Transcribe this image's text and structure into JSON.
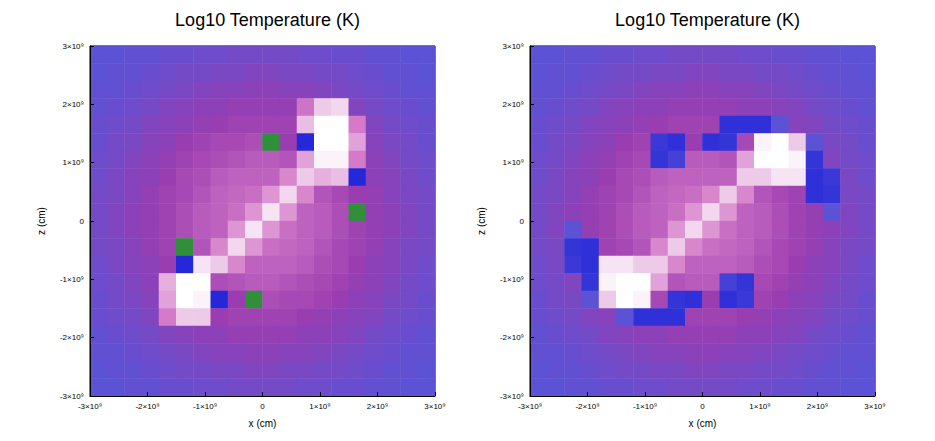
{
  "chart_data": [
    {
      "type": "heatmap",
      "title": "Log10 Temperature (K)",
      "x_label": "x (cm)",
      "y_label": "z (cm)",
      "xlim": [
        -3000000000.0,
        3000000000.0
      ],
      "ylim": [
        -3000000000.0,
        3000000000.0
      ],
      "xticks": [
        {
          "value": -3000000000.0,
          "label": "-3×10⁹"
        },
        {
          "value": -2000000000.0,
          "label": "-2×10⁹"
        },
        {
          "value": -1000000000.0,
          "label": "-1×10⁹"
        },
        0,
        {
          "value": 1000000000.0,
          "label": "1×10⁹"
        },
        {
          "value": 2000000000.0,
          "label": "2×10⁹"
        },
        {
          "value": 3000000000.0,
          "label": "3×10⁹"
        }
      ],
      "yticks": [
        {
          "value": -3000000000.0,
          "label": "-3×10⁹"
        },
        {
          "value": -2000000000.0,
          "label": "-2×10⁹"
        },
        {
          "value": -1000000000.0,
          "label": "-1×10⁹"
        },
        0,
        {
          "value": 1000000000.0,
          "label": "1×10⁹"
        },
        {
          "value": 2000000000.0,
          "label": "2×10⁹"
        },
        {
          "value": 3000000000.0,
          "label": "3×10⁹"
        }
      ],
      "grid": false,
      "color_range": [
        4,
        9
      ],
      "x": [
        -2850000000.0,
        -2550000000.0,
        -2250000000.0,
        -1950000000.0,
        -1650000000.0,
        -1350000000.0,
        -1050000000.0,
        -750000000.0,
        -450000000.0,
        -150000000.0,
        150000000.0,
        450000000.0,
        750000000.0,
        1050000000.0,
        1350000000.0,
        1650000000.0,
        1950000000.0,
        2250000000.0,
        2550000000.0,
        2850000000.0
      ],
      "y": [
        2850000000.0,
        2550000000.0,
        2250000000.0,
        1950000000.0,
        1650000000.0,
        1350000000.0,
        1050000000.0,
        750000000.0,
        450000000.0,
        150000000.0,
        -150000000.0,
        -450000000.0,
        -750000000.0,
        -1050000000.0,
        -1350000000.0,
        -1650000000.0,
        -1950000000.0,
        -2250000000.0,
        -2550000000.0,
        -2850000000.0
      ],
      "cells": [
        [
          6.0,
          6.0,
          6.1,
          6.1,
          6.2,
          6.2,
          6.3,
          6.3,
          6.4,
          6.4,
          6.4,
          6.4,
          6.3,
          6.3,
          6.2,
          6.2,
          6.1,
          6.1,
          6.0,
          6.0
        ],
        [
          6.0,
          6.1,
          6.1,
          6.2,
          6.3,
          6.4,
          6.4,
          6.5,
          6.5,
          6.6,
          6.6,
          6.5,
          6.5,
          6.4,
          6.4,
          6.3,
          6.2,
          6.1,
          6.1,
          6.0
        ],
        [
          6.1,
          6.1,
          6.2,
          6.3,
          6.4,
          6.5,
          6.6,
          6.7,
          6.7,
          6.8,
          6.8,
          6.7,
          6.7,
          6.6,
          6.5,
          6.4,
          6.3,
          6.2,
          6.1,
          6.1
        ],
        [
          6.1,
          6.2,
          6.3,
          6.4,
          6.6,
          6.7,
          6.8,
          6.8,
          6.9,
          6.9,
          6.9,
          6.9,
          7.9,
          8.6,
          8.7,
          6.6,
          6.4,
          6.3,
          6.2,
          6.1
        ],
        [
          6.2,
          6.3,
          6.4,
          6.6,
          6.7,
          6.8,
          6.9,
          7.0,
          7.1,
          7.1,
          7.1,
          7.1,
          8.5,
          9.0,
          9.0,
          8.0,
          6.6,
          6.4,
          6.3,
          6.2
        ],
        [
          6.2,
          6.4,
          6.5,
          6.7,
          6.8,
          7.0,
          7.1,
          7.2,
          7.2,
          7.3,
          4.0,
          7.0,
          5.0,
          9.0,
          9.0,
          8.3,
          6.7,
          6.5,
          6.4,
          6.2
        ],
        [
          6.3,
          6.4,
          6.6,
          6.8,
          6.9,
          7.1,
          7.2,
          7.3,
          7.4,
          7.5,
          7.5,
          7.4,
          8.3,
          8.9,
          8.9,
          8.0,
          6.8,
          6.6,
          6.4,
          6.3
        ],
        [
          6.3,
          6.5,
          6.7,
          6.8,
          7.0,
          7.2,
          7.3,
          7.5,
          7.6,
          7.6,
          7.6,
          8.1,
          8.6,
          8.4,
          8.5,
          5.0,
          6.8,
          6.7,
          6.5,
          6.3
        ],
        [
          6.4,
          6.5,
          6.7,
          6.9,
          7.1,
          7.2,
          7.4,
          7.6,
          7.7,
          7.8,
          8.2,
          8.7,
          8.1,
          7.4,
          7.2,
          7.0,
          6.9,
          6.7,
          6.5,
          6.4
        ],
        [
          6.4,
          6.6,
          6.8,
          6.9,
          7.1,
          7.3,
          7.5,
          7.6,
          7.8,
          8.2,
          8.8,
          8.2,
          7.6,
          7.5,
          7.3,
          4.0,
          6.9,
          6.8,
          6.6,
          6.4
        ],
        [
          6.4,
          6.6,
          6.8,
          6.9,
          7.1,
          7.3,
          7.5,
          7.6,
          8.2,
          8.8,
          8.2,
          7.8,
          7.6,
          7.5,
          7.3,
          7.1,
          6.9,
          6.8,
          6.6,
          6.4
        ],
        [
          6.4,
          6.5,
          6.7,
          6.9,
          7.1,
          4.0,
          7.4,
          8.1,
          8.7,
          8.2,
          7.8,
          7.7,
          7.6,
          7.4,
          7.2,
          7.1,
          6.9,
          6.7,
          6.5,
          6.4
        ],
        [
          6.3,
          6.5,
          6.7,
          6.8,
          7.0,
          5.0,
          8.8,
          8.6,
          8.1,
          7.6,
          7.6,
          7.6,
          7.5,
          7.3,
          7.2,
          7.0,
          6.8,
          6.7,
          6.5,
          6.3
        ],
        [
          6.3,
          6.4,
          6.6,
          6.8,
          8.4,
          9.0,
          9.0,
          7.3,
          7.4,
          7.5,
          7.5,
          7.4,
          7.3,
          7.2,
          7.1,
          6.9,
          6.8,
          6.6,
          6.4,
          6.3
        ],
        [
          6.2,
          6.4,
          6.5,
          6.7,
          8.3,
          9.0,
          8.9,
          5.0,
          7.0,
          4.0,
          7.3,
          7.2,
          7.2,
          7.1,
          7.0,
          6.8,
          6.7,
          6.5,
          6.4,
          6.2
        ],
        [
          6.2,
          6.3,
          6.4,
          6.6,
          8.0,
          8.6,
          8.6,
          7.0,
          7.1,
          7.1,
          7.1,
          7.1,
          7.0,
          6.9,
          6.8,
          6.7,
          6.6,
          6.4,
          6.3,
          6.2
        ],
        [
          6.1,
          6.2,
          6.3,
          6.4,
          6.6,
          6.7,
          6.8,
          6.8,
          6.9,
          6.9,
          6.9,
          6.9,
          6.8,
          6.8,
          6.7,
          6.6,
          6.4,
          6.3,
          6.2,
          6.1
        ],
        [
          6.1,
          6.1,
          6.2,
          6.3,
          6.4,
          6.5,
          6.6,
          6.7,
          6.7,
          6.8,
          6.8,
          6.7,
          6.7,
          6.6,
          6.5,
          6.4,
          6.3,
          6.2,
          6.1,
          6.1
        ],
        [
          6.0,
          6.1,
          6.1,
          6.2,
          6.3,
          6.4,
          6.4,
          6.5,
          6.5,
          6.6,
          6.6,
          6.5,
          6.5,
          6.4,
          6.4,
          6.3,
          6.2,
          6.1,
          6.1,
          6.0
        ],
        [
          6.0,
          6.0,
          6.1,
          6.1,
          6.2,
          6.2,
          6.3,
          6.3,
          6.4,
          6.4,
          6.4,
          6.4,
          6.3,
          6.3,
          6.2,
          6.2,
          6.1,
          6.1,
          6.0,
          6.0
        ]
      ]
    },
    {
      "type": "heatmap",
      "title": "Log10 Temperature (K)",
      "x_label": "x (cm)",
      "y_label": "z (cm)",
      "xlim": [
        -3000000000.0,
        3000000000.0
      ],
      "ylim": [
        -3000000000.0,
        3000000000.0
      ],
      "xticks": [
        {
          "value": -3000000000.0,
          "label": "-3×10⁹"
        },
        {
          "value": -2000000000.0,
          "label": "-2×10⁹"
        },
        {
          "value": -1000000000.0,
          "label": "-1×10⁹"
        },
        0,
        {
          "value": 1000000000.0,
          "label": "1×10⁹"
        },
        {
          "value": 2000000000.0,
          "label": "2×10⁹"
        },
        {
          "value": 3000000000.0,
          "label": "3×10⁹"
        }
      ],
      "yticks": [
        {
          "value": -3000000000.0,
          "label": "-3×10⁹"
        },
        {
          "value": -2000000000.0,
          "label": "-2×10⁹"
        },
        {
          "value": -1000000000.0,
          "label": "-1×10⁹"
        },
        0,
        {
          "value": 1000000000.0,
          "label": "1×10⁹"
        },
        {
          "value": 2000000000.0,
          "label": "2×10⁹"
        },
        {
          "value": 3000000000.0,
          "label": "3×10⁹"
        }
      ],
      "grid": false,
      "color_range": [
        4,
        9
      ],
      "x": [
        -2850000000.0,
        -2550000000.0,
        -2250000000.0,
        -1950000000.0,
        -1650000000.0,
        -1350000000.0,
        -1050000000.0,
        -750000000.0,
        -450000000.0,
        -150000000.0,
        150000000.0,
        450000000.0,
        750000000.0,
        1050000000.0,
        1350000000.0,
        1650000000.0,
        1950000000.0,
        2250000000.0,
        2550000000.0,
        2850000000.0
      ],
      "y": [
        2850000000.0,
        2550000000.0,
        2250000000.0,
        1950000000.0,
        1650000000.0,
        1350000000.0,
        1050000000.0,
        750000000.0,
        450000000.0,
        150000000.0,
        -150000000.0,
        -450000000.0,
        -750000000.0,
        -1050000000.0,
        -1350000000.0,
        -1650000000.0,
        -1950000000.0,
        -2250000000.0,
        -2550000000.0,
        -2850000000.0
      ],
      "cells": [
        [
          6.0,
          6.0,
          6.1,
          6.1,
          6.2,
          6.2,
          6.3,
          6.3,
          6.4,
          6.4,
          6.4,
          6.4,
          6.3,
          6.3,
          6.2,
          6.2,
          6.1,
          6.1,
          6.0,
          6.0
        ],
        [
          6.0,
          6.1,
          6.1,
          6.2,
          6.3,
          6.4,
          6.4,
          6.5,
          6.5,
          6.6,
          6.6,
          6.5,
          6.5,
          6.4,
          6.4,
          6.3,
          6.2,
          6.1,
          6.1,
          6.0
        ],
        [
          6.1,
          6.1,
          6.2,
          6.3,
          6.4,
          6.5,
          6.6,
          6.7,
          6.7,
          6.8,
          6.8,
          6.7,
          6.7,
          6.6,
          6.5,
          6.4,
          6.3,
          6.2,
          6.1,
          6.1
        ],
        [
          6.1,
          6.2,
          6.3,
          6.4,
          6.6,
          6.7,
          6.8,
          6.8,
          6.9,
          6.9,
          6.9,
          6.9,
          6.8,
          6.8,
          6.7,
          6.6,
          6.4,
          6.3,
          6.2,
          6.1
        ],
        [
          6.2,
          6.3,
          6.4,
          6.6,
          6.7,
          6.8,
          6.9,
          7.0,
          7.1,
          7.1,
          7.1,
          5.2,
          5.2,
          5.2,
          6.0,
          6.7,
          6.6,
          6.4,
          6.3,
          6.2
        ],
        [
          6.2,
          6.4,
          6.5,
          6.7,
          6.8,
          7.0,
          7.1,
          5.4,
          5.2,
          7.0,
          5.2,
          5.3,
          7.2,
          8.9,
          9.0,
          8.6,
          6.0,
          6.5,
          6.4,
          6.2
        ],
        [
          6.3,
          6.4,
          6.6,
          6.8,
          6.9,
          7.1,
          7.2,
          5.3,
          5.6,
          7.5,
          7.5,
          7.4,
          8.3,
          9.0,
          9.0,
          8.9,
          5.3,
          6.6,
          6.4,
          6.3
        ],
        [
          6.3,
          6.5,
          6.7,
          6.8,
          7.0,
          7.2,
          7.3,
          7.5,
          7.6,
          7.6,
          7.6,
          7.6,
          8.6,
          8.6,
          8.8,
          8.8,
          5.2,
          5.4,
          6.5,
          6.3
        ],
        [
          6.4,
          6.5,
          6.7,
          6.9,
          7.1,
          7.2,
          7.4,
          7.6,
          7.7,
          7.8,
          8.1,
          8.6,
          8.1,
          7.4,
          7.2,
          7.1,
          5.2,
          5.3,
          6.5,
          6.4
        ],
        [
          6.4,
          6.6,
          6.8,
          6.9,
          7.1,
          7.3,
          7.5,
          7.6,
          7.8,
          8.2,
          8.7,
          8.2,
          7.6,
          7.5,
          7.3,
          7.1,
          6.9,
          6.0,
          6.6,
          6.4
        ],
        [
          6.4,
          6.6,
          6.0,
          6.9,
          7.1,
          7.3,
          7.5,
          7.6,
          8.2,
          8.7,
          8.2,
          7.8,
          7.6,
          7.5,
          7.3,
          7.1,
          6.9,
          6.8,
          6.6,
          6.4
        ],
        [
          6.4,
          6.5,
          5.3,
          5.2,
          7.1,
          7.2,
          7.4,
          8.1,
          8.6,
          8.1,
          7.8,
          7.7,
          7.6,
          7.4,
          7.2,
          7.1,
          6.9,
          6.7,
          6.5,
          6.4
        ],
        [
          6.3,
          6.5,
          5.4,
          5.2,
          8.8,
          8.8,
          8.6,
          8.6,
          8.1,
          7.6,
          7.6,
          7.6,
          7.5,
          7.3,
          7.2,
          7.0,
          6.8,
          6.7,
          6.5,
          6.3
        ],
        [
          6.3,
          6.4,
          6.6,
          5.3,
          8.9,
          9.0,
          9.0,
          8.3,
          7.4,
          7.5,
          7.5,
          5.6,
          5.3,
          7.2,
          7.1,
          6.9,
          6.8,
          6.6,
          6.4,
          6.3
        ],
        [
          6.2,
          6.4,
          6.5,
          6.0,
          8.6,
          9.0,
          8.9,
          7.2,
          5.3,
          5.2,
          7.0,
          5.2,
          5.4,
          7.1,
          7.0,
          6.8,
          6.7,
          6.5,
          6.4,
          6.2
        ],
        [
          6.2,
          6.3,
          6.4,
          6.6,
          6.7,
          6.0,
          5.2,
          5.2,
          5.2,
          7.1,
          7.1,
          7.1,
          7.0,
          6.9,
          6.8,
          6.7,
          6.6,
          6.4,
          6.3,
          6.2
        ],
        [
          6.1,
          6.2,
          6.3,
          6.4,
          6.6,
          6.7,
          6.8,
          6.8,
          6.9,
          6.9,
          6.9,
          6.9,
          6.8,
          6.8,
          6.7,
          6.6,
          6.4,
          6.3,
          6.2,
          6.1
        ],
        [
          6.1,
          6.1,
          6.2,
          6.3,
          6.4,
          6.5,
          6.6,
          6.7,
          6.7,
          6.8,
          6.8,
          6.7,
          6.7,
          6.6,
          6.5,
          6.4,
          6.3,
          6.2,
          6.1,
          6.1
        ],
        [
          6.0,
          6.1,
          6.1,
          6.2,
          6.3,
          6.4,
          6.4,
          6.5,
          6.5,
          6.6,
          6.6,
          6.5,
          6.5,
          6.4,
          6.4,
          6.3,
          6.2,
          6.1,
          6.1,
          6.0
        ],
        [
          6.0,
          6.0,
          6.1,
          6.1,
          6.2,
          6.2,
          6.3,
          6.3,
          6.4,
          6.4,
          6.4,
          6.4,
          6.3,
          6.3,
          6.2,
          6.2,
          6.1,
          6.1,
          6.0,
          6.0
        ]
      ]
    }
  ]
}
